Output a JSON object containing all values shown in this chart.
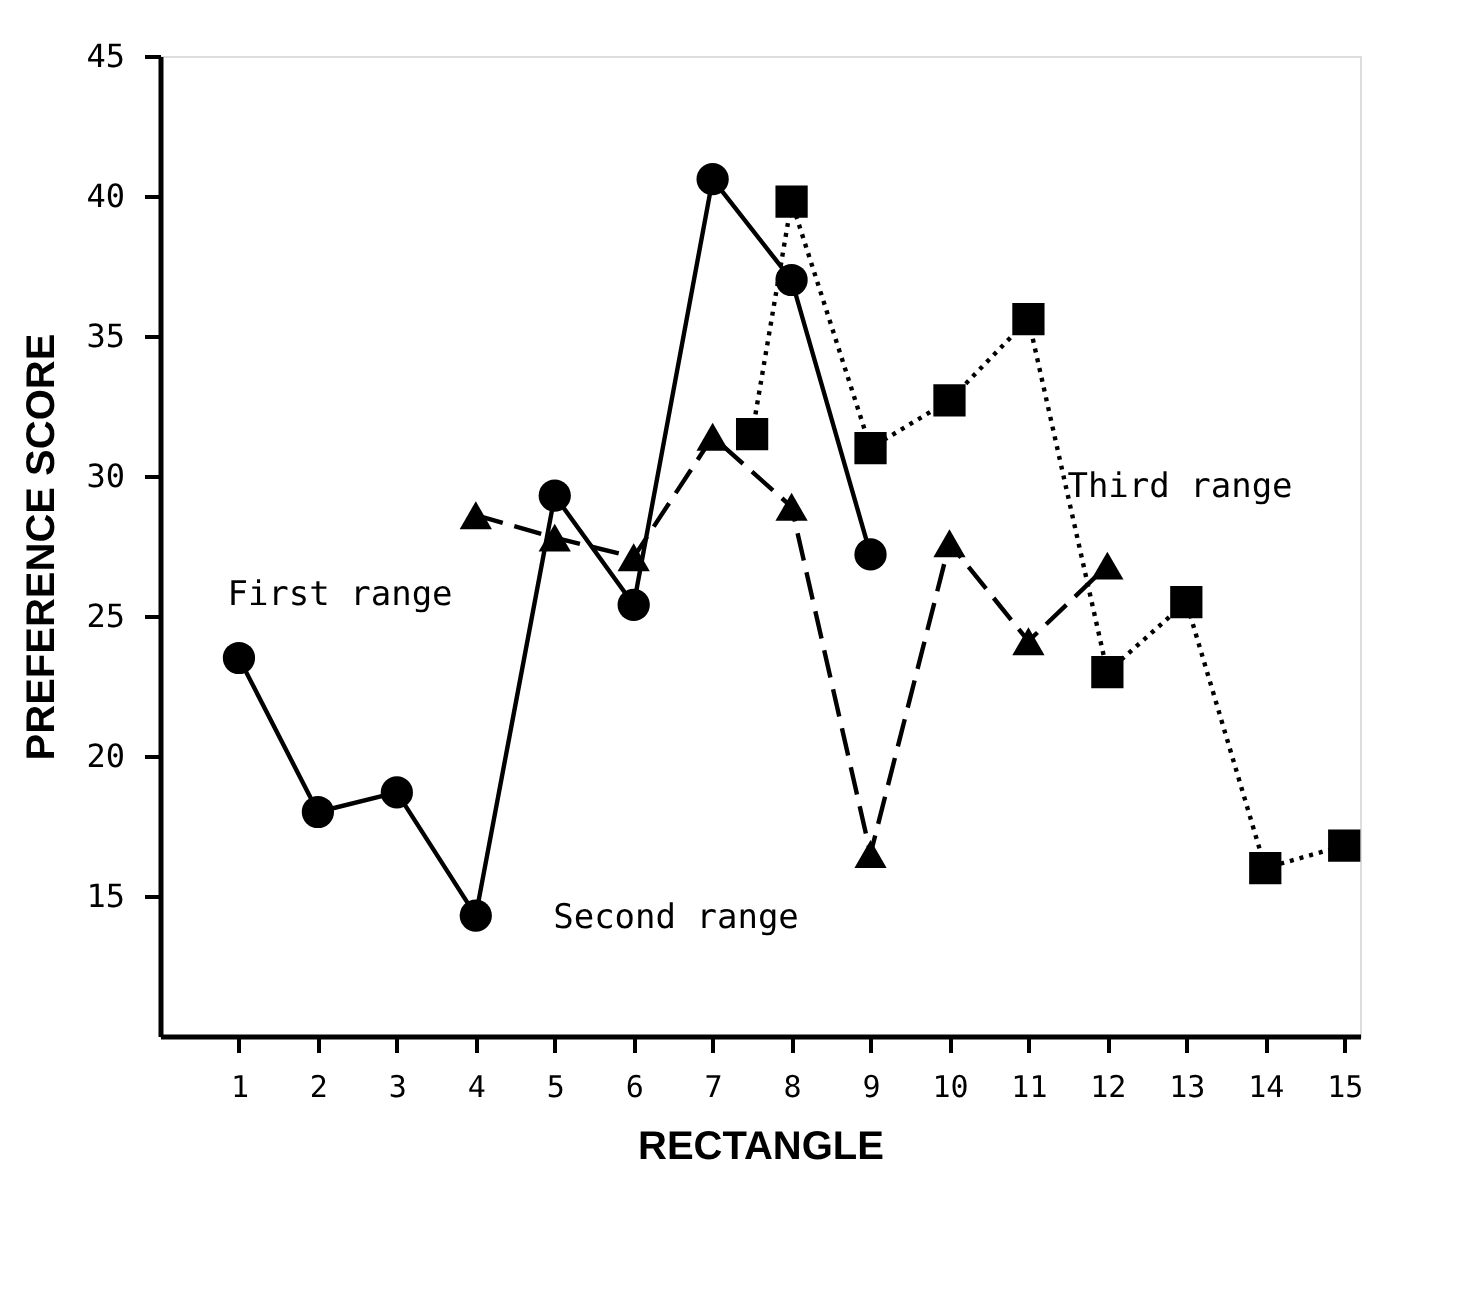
{
  "chart_data": {
    "type": "line",
    "xlabel": "RECTANGLE",
    "ylabel": "PREFERENCE SCORE",
    "xlim": [
      0,
      15.2
    ],
    "xticks": [
      1,
      2,
      3,
      4,
      5,
      6,
      7,
      8,
      9,
      10,
      11,
      12,
      13,
      14,
      15
    ],
    "ylim": [
      10,
      45
    ],
    "yticks": [
      15,
      20,
      25,
      30,
      35,
      40,
      45
    ],
    "grid": false,
    "series": [
      {
        "color": "#000000",
        "marker": "circle",
        "line_style": "solid",
        "x": [
          1,
          2,
          3,
          4,
          5,
          6,
          7,
          8,
          9
        ],
        "values": [
          23.5,
          18,
          18.7,
          14.3,
          29.3,
          25.4,
          40.6,
          37,
          27.2
        ]
      },
      {
        "color": "#000000",
        "marker": "triangle",
        "line_style": "dashed",
        "x": [
          4,
          5,
          6,
          7,
          8,
          9,
          10,
          11,
          12
        ],
        "values": [
          28.6,
          27.8,
          27.1,
          31.4,
          28.9,
          16.5,
          27.6,
          24.1,
          26.8
        ]
      },
      {
        "color": "#000000",
        "marker": "square",
        "line_style": "dotted",
        "x": [
          7.5,
          8,
          9,
          10,
          11,
          12,
          13,
          14,
          15
        ],
        "values": [
          31.5,
          39.8,
          31,
          32.7,
          35.6,
          23,
          25.5,
          16,
          16.8
        ]
      }
    ],
    "annotations": [
      "First range",
      "Second range",
      "Third range"
    ]
  }
}
